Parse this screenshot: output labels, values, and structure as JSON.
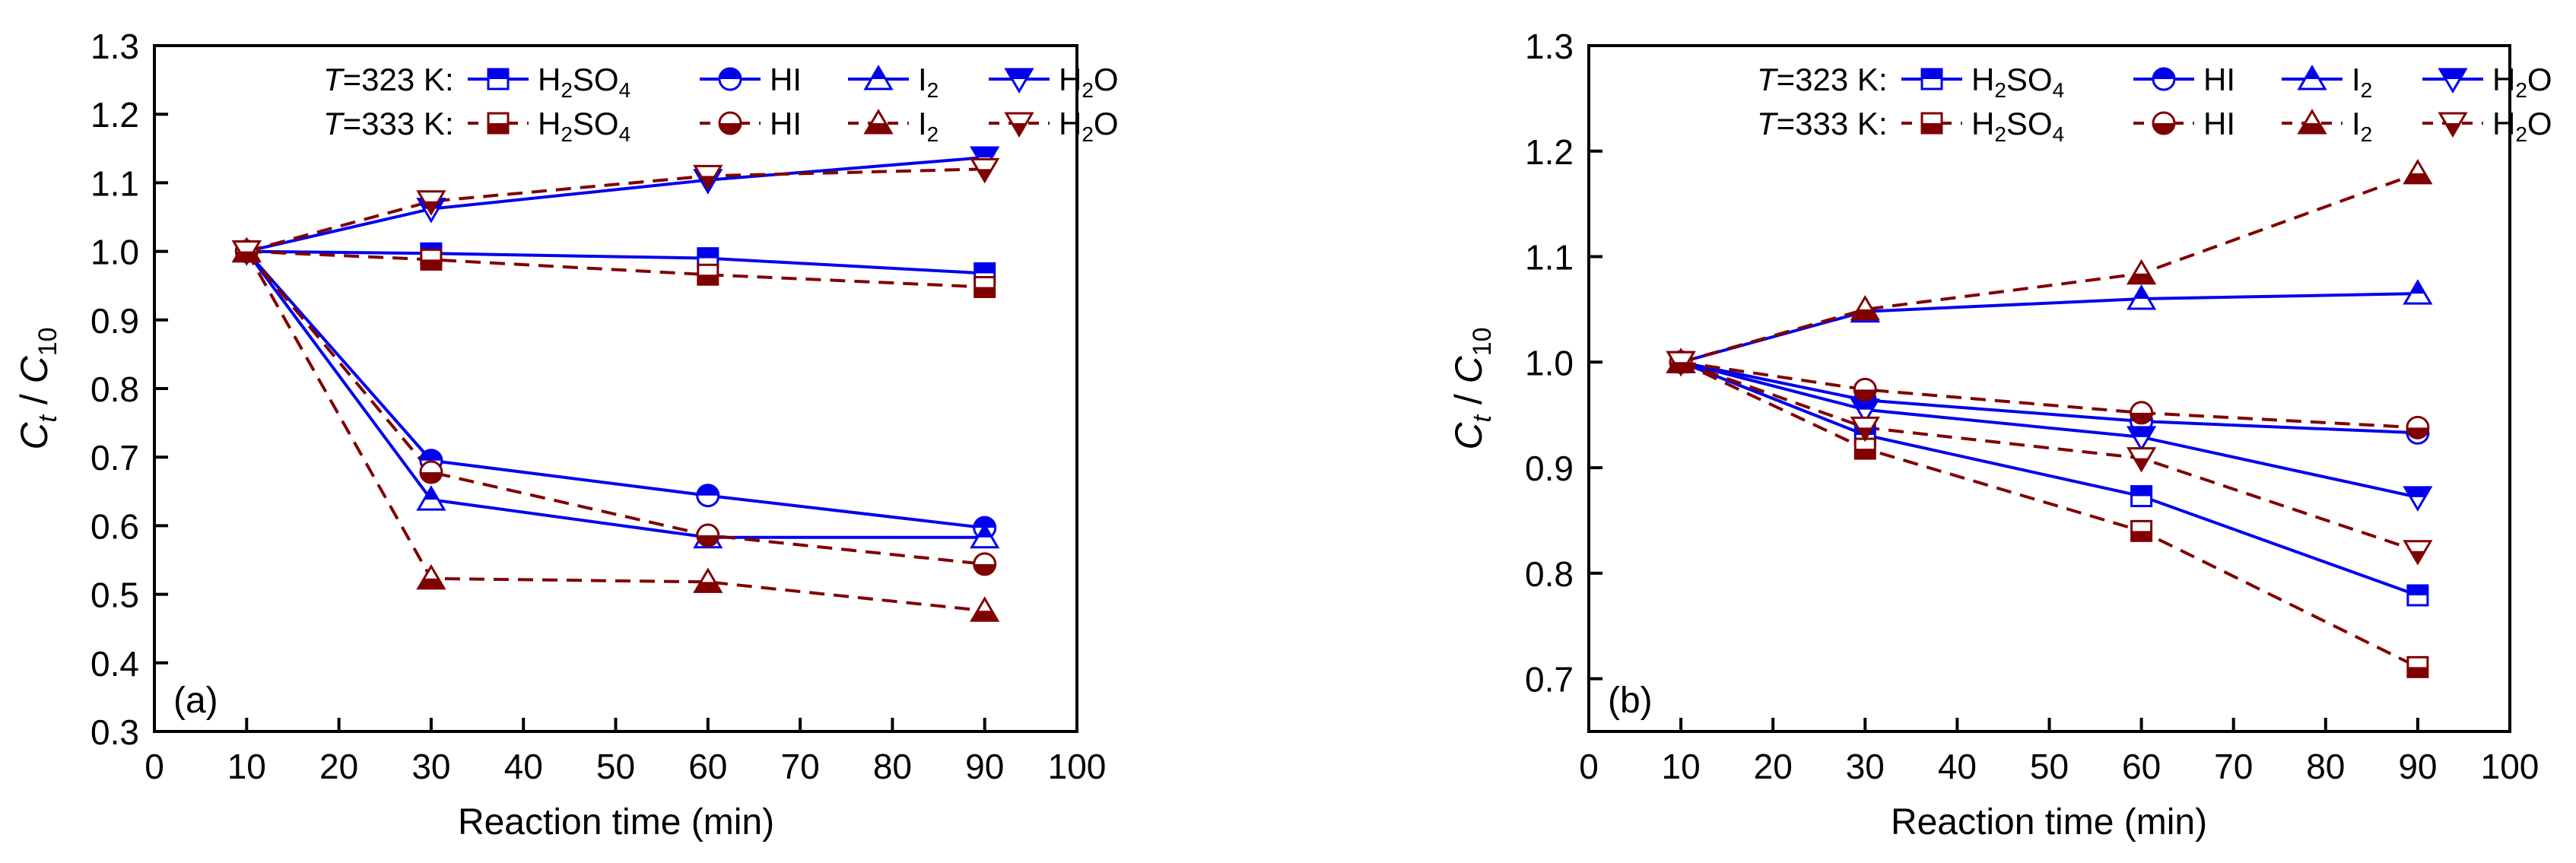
{
  "chart_data": [
    {
      "type": "line",
      "panel_label": "(a)",
      "xlabel": "Reaction time (min)",
      "ylabel": {
        "main": "C",
        "sub1": "t",
        "sep": " / ",
        "main2": "C",
        "sub2": "10"
      },
      "xlim": [
        0,
        100
      ],
      "ylim": [
        0.3,
        1.3
      ],
      "xticks": [
        0,
        10,
        20,
        30,
        40,
        50,
        60,
        70,
        80,
        90,
        100
      ],
      "xtick_labels": [
        "0",
        "10",
        "20",
        "30",
        "40",
        "50",
        "60",
        "70",
        "80",
        "90",
        "100"
      ],
      "yticks": [
        0.3,
        0.4,
        0.5,
        0.6,
        0.7,
        0.8,
        0.9,
        1.0,
        1.1,
        1.2,
        1.3
      ],
      "ytick_labels": [
        "0.3",
        "0.4",
        "0.5",
        "0.6",
        "0.7",
        "0.8",
        "0.9",
        "1.0",
        "1.1",
        "1.2",
        "1.3"
      ],
      "grid": false,
      "legend_position": "top",
      "x": [
        10,
        30,
        60,
        90
      ],
      "series": [
        {
          "name": "H2SO4",
          "temperature": "323 K",
          "marker": "square",
          "style": "solid",
          "values": [
            1.0,
            0.997,
            0.99,
            0.968
          ]
        },
        {
          "name": "HI",
          "temperature": "323 K",
          "marker": "circle",
          "style": "solid",
          "values": [
            1.0,
            0.695,
            0.644,
            0.597
          ]
        },
        {
          "name": "I2",
          "temperature": "323 K",
          "marker": "triangle-up",
          "style": "solid",
          "values": [
            1.0,
            0.638,
            0.583,
            0.583
          ]
        },
        {
          "name": "H2O",
          "temperature": "323 K",
          "marker": "triangle-down",
          "style": "solid",
          "values": [
            1.0,
            1.062,
            1.104,
            1.137
          ]
        },
        {
          "name": "H2SO4",
          "temperature": "333 K",
          "marker": "square",
          "style": "dashed",
          "values": [
            1.0,
            0.988,
            0.966,
            0.948
          ]
        },
        {
          "name": "HI",
          "temperature": "333 K",
          "marker": "circle",
          "style": "dashed",
          "values": [
            1.0,
            0.678,
            0.586,
            0.544
          ]
        },
        {
          "name": "I2",
          "temperature": "333 K",
          "marker": "triangle-up",
          "style": "dashed",
          "values": [
            1.0,
            0.523,
            0.518,
            0.476
          ]
        },
        {
          "name": "H2O",
          "temperature": "333 K",
          "marker": "triangle-down",
          "style": "dashed",
          "values": [
            1.0,
            1.073,
            1.11,
            1.12
          ]
        }
      ]
    },
    {
      "type": "line",
      "panel_label": "(b)",
      "xlabel": "Reaction time (min)",
      "ylabel": {
        "main": "C",
        "sub1": "t",
        "sep": " / ",
        "main2": "C",
        "sub2": "10"
      },
      "xlim": [
        0,
        100
      ],
      "ylim": [
        0.65,
        1.3
      ],
      "xticks": [
        0,
        10,
        20,
        30,
        40,
        50,
        60,
        70,
        80,
        90,
        100
      ],
      "xtick_labels": [
        "0",
        "10",
        "20",
        "30",
        "40",
        "50",
        "60",
        "70",
        "80",
        "90",
        "100"
      ],
      "yticks": [
        0.7,
        0.8,
        0.9,
        1.0,
        1.1,
        1.2,
        1.3
      ],
      "ytick_labels": [
        "0.7",
        "0.8",
        "0.9",
        "1.0",
        "1.1",
        "1.2",
        "1.3"
      ],
      "grid": false,
      "legend_position": "top",
      "x": [
        10,
        30,
        60,
        90
      ],
      "series": [
        {
          "name": "H2SO4",
          "temperature": "323 K",
          "marker": "square",
          "style": "solid",
          "values": [
            1.0,
            0.931,
            0.873,
            0.779
          ]
        },
        {
          "name": "HI",
          "temperature": "323 K",
          "marker": "circle",
          "style": "solid",
          "values": [
            1.0,
            0.964,
            0.944,
            0.933
          ]
        },
        {
          "name": "I2",
          "temperature": "323 K",
          "marker": "triangle-up",
          "style": "solid",
          "values": [
            1.0,
            1.048,
            1.06,
            1.065
          ]
        },
        {
          "name": "H2O",
          "temperature": "323 K",
          "marker": "triangle-down",
          "style": "solid",
          "values": [
            1.0,
            0.955,
            0.929,
            0.872
          ]
        },
        {
          "name": "H2SO4",
          "temperature": "333 K",
          "marker": "square",
          "style": "dashed",
          "values": [
            1.0,
            0.918,
            0.84,
            0.711
          ]
        },
        {
          "name": "HI",
          "temperature": "333 K",
          "marker": "circle",
          "style": "dashed",
          "values": [
            1.0,
            0.974,
            0.952,
            0.938
          ]
        },
        {
          "name": "I2",
          "temperature": "333 K",
          "marker": "triangle-up",
          "style": "dashed",
          "values": [
            1.0,
            1.05,
            1.084,
            1.179
          ]
        },
        {
          "name": "H2O",
          "temperature": "333 K",
          "marker": "triangle-down",
          "style": "dashed",
          "values": [
            1.0,
            0.938,
            0.909,
            0.821
          ]
        }
      ]
    }
  ],
  "legend": {
    "rows": [
      {
        "prefix_italic": "T",
        "prefix_rest": "=323 K:",
        "style": "solid",
        "color": "#0000ee"
      },
      {
        "prefix_italic": "T",
        "prefix_rest": "=333 K:",
        "style": "dashed",
        "color": "#800000"
      }
    ],
    "entries": [
      {
        "marker": "square",
        "label_main": "H",
        "label_sub": "2",
        "label_rest": "SO",
        "label_sub2": "4"
      },
      {
        "marker": "circle",
        "label_main": "HI",
        "label_sub": "",
        "label_rest": "",
        "label_sub2": ""
      },
      {
        "marker": "triangle-up",
        "label_main": "I",
        "label_sub": "2",
        "label_rest": "",
        "label_sub2": ""
      },
      {
        "marker": "triangle-down",
        "label_main": "H",
        "label_sub": "2",
        "label_rest": "O",
        "label_sub2": ""
      }
    ]
  },
  "colors": {
    "t323": "#0000ee",
    "t333": "#800000",
    "axis": "#000000"
  }
}
